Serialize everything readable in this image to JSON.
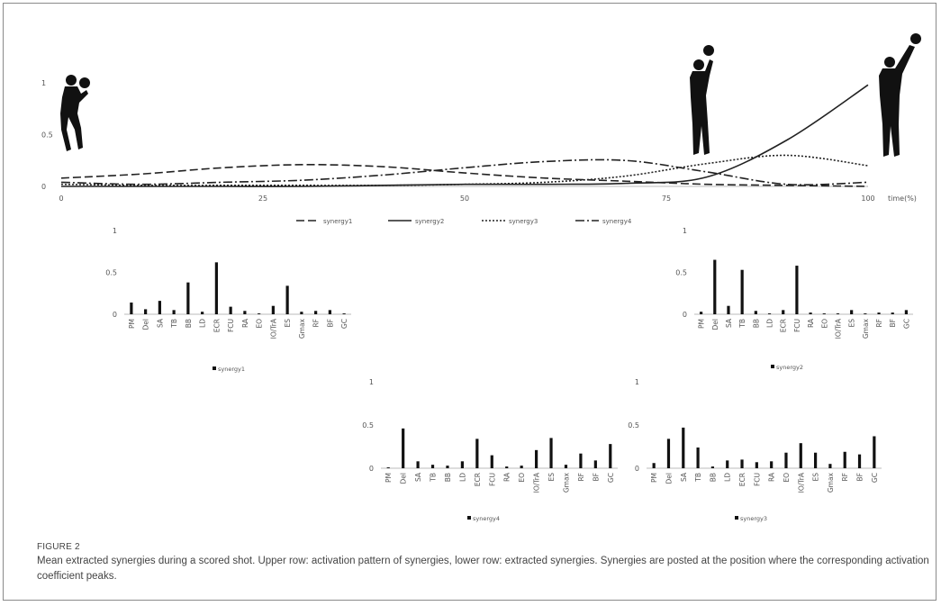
{
  "caption": {
    "label": "FIGURE 2",
    "text": "Mean extracted synergies during a scored shot. Upper row: activation pattern of synergies, lower row: extracted synergies. Synergies are posted at the position where the corresponding activation coefficient peaks."
  },
  "chart_data": [
    {
      "type": "line",
      "xlabel": "time(%)",
      "xlim": [
        0,
        100
      ],
      "ylim": [
        0,
        1
      ],
      "xticks": [
        "0",
        "25",
        "50",
        "75",
        "100"
      ],
      "yticks": [
        "0",
        "0.5",
        "1"
      ],
      "legend_position": "bottom",
      "x": [
        0,
        10,
        20,
        30,
        40,
        50,
        60,
        70,
        80,
        90,
        100
      ],
      "series": [
        {
          "name": "synergy1",
          "style": "dashed",
          "values": [
            0.08,
            0.12,
            0.18,
            0.21,
            0.19,
            0.13,
            0.08,
            0.05,
            0.02,
            0.01,
            0.0
          ]
        },
        {
          "name": "synergy2",
          "style": "solid",
          "values": [
            0.0,
            0.0,
            0.0,
            0.0,
            0.01,
            0.02,
            0.02,
            0.03,
            0.09,
            0.45,
            0.98
          ]
        },
        {
          "name": "synergy3",
          "style": "dotted",
          "values": [
            0.02,
            0.01,
            0.01,
            0.01,
            0.01,
            0.02,
            0.04,
            0.1,
            0.22,
            0.3,
            0.2
          ]
        },
        {
          "name": "synergy4",
          "style": "dashdot",
          "values": [
            0.04,
            0.02,
            0.04,
            0.06,
            0.11,
            0.18,
            0.24,
            0.25,
            0.14,
            0.02,
            0.04
          ]
        }
      ]
    },
    {
      "type": "bar",
      "categories": [
        "PM",
        "Del",
        "SA",
        "TB",
        "BB",
        "LD",
        "ECR",
        "FCU",
        "RA",
        "EO",
        "IO/TrA",
        "ES",
        "Gmax",
        "RF",
        "BF",
        "GC"
      ],
      "series": [
        {
          "name": "synergy1",
          "values": [
            0.14,
            0.06,
            0.16,
            0.05,
            0.38,
            0.03,
            0.62,
            0.09,
            0.04,
            0.01,
            0.1,
            0.34,
            0.03,
            0.04,
            0.05,
            0.01
          ]
        }
      ],
      "ylim": [
        0,
        1
      ],
      "yticks": [
        "0",
        "0.5",
        "1"
      ],
      "legend_position": "bottom"
    },
    {
      "type": "bar",
      "categories": [
        "PM",
        "Del",
        "SA",
        "TB",
        "BB",
        "LD",
        "ECR",
        "FCU",
        "RA",
        "EO",
        "IO/TrA",
        "ES",
        "Gmax",
        "RF",
        "BF",
        "GC"
      ],
      "series": [
        {
          "name": "synergy2",
          "values": [
            0.03,
            0.65,
            0.1,
            0.53,
            0.04,
            0.01,
            0.05,
            0.58,
            0.02,
            0.01,
            0.01,
            0.05,
            0.01,
            0.02,
            0.02,
            0.05
          ]
        }
      ],
      "ylim": [
        0,
        1
      ],
      "yticks": [
        "0",
        "0.5",
        "1"
      ],
      "legend_position": "bottom"
    },
    {
      "type": "bar",
      "categories": [
        "PM",
        "Del",
        "SA",
        "TB",
        "BB",
        "LD",
        "ECR",
        "FCU",
        "RA",
        "EO",
        "IO/TrA",
        "ES",
        "Gmax",
        "RF",
        "BF",
        "GC"
      ],
      "series": [
        {
          "name": "synergy4",
          "values": [
            0.01,
            0.46,
            0.08,
            0.04,
            0.03,
            0.08,
            0.34,
            0.15,
            0.02,
            0.03,
            0.21,
            0.35,
            0.04,
            0.17,
            0.09,
            0.28
          ]
        }
      ],
      "ylim": [
        0,
        1
      ],
      "yticks": [
        "0",
        "0.5",
        "1"
      ],
      "legend_position": "bottom"
    },
    {
      "type": "bar",
      "categories": [
        "PM",
        "Del",
        "SA",
        "TB",
        "BB",
        "LD",
        "ECR",
        "FCU",
        "RA",
        "EO",
        "IO/TrA",
        "ES",
        "Gmax",
        "RF",
        "BF",
        "GC"
      ],
      "series": [
        {
          "name": "synergy3",
          "values": [
            0.06,
            0.34,
            0.47,
            0.24,
            0.02,
            0.09,
            0.1,
            0.07,
            0.08,
            0.18,
            0.29,
            0.18,
            0.05,
            0.19,
            0.16,
            0.37
          ]
        }
      ],
      "ylim": [
        0,
        1
      ],
      "yticks": [
        "0",
        "0.5",
        "1"
      ],
      "legend_position": "bottom"
    }
  ]
}
